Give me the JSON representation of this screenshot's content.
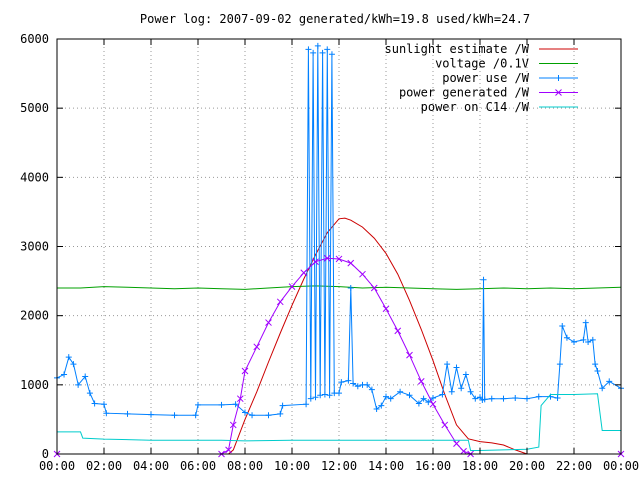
{
  "chart_data": {
    "type": "line",
    "title": "Power log: 2007-09-02 generated/kWh=19.8 used/kWh=24.7",
    "xlabel": "",
    "ylabel": "",
    "xlim": [
      "00:00",
      "24:00"
    ],
    "ylim": [
      0,
      6000
    ],
    "x_ticks": [
      "00:00",
      "02:00",
      "04:00",
      "06:00",
      "08:00",
      "10:00",
      "12:00",
      "14:00",
      "16:00",
      "18:00",
      "20:00",
      "22:00",
      "00:00"
    ],
    "y_ticks": [
      "0",
      "1000",
      "2000",
      "3000",
      "4000",
      "5000",
      "6000"
    ],
    "grid": true,
    "legend_position": "top-right",
    "series": [
      {
        "name": "sunlight estimate /W",
        "color": "#cc0000",
        "marker": "none",
        "points": [
          [
            0,
            0
          ],
          [
            7.3,
            0
          ],
          [
            7.5,
            60
          ],
          [
            8.0,
            500
          ],
          [
            8.5,
            900
          ],
          [
            9.0,
            1330
          ],
          [
            9.5,
            1750
          ],
          [
            10.0,
            2150
          ],
          [
            10.5,
            2530
          ],
          [
            11.0,
            2880
          ],
          [
            11.5,
            3200
          ],
          [
            12.0,
            3400
          ],
          [
            12.25,
            3410
          ],
          [
            12.5,
            3380
          ],
          [
            13.0,
            3280
          ],
          [
            13.5,
            3120
          ],
          [
            14.0,
            2900
          ],
          [
            14.5,
            2600
          ],
          [
            15.0,
            2220
          ],
          [
            15.5,
            1800
          ],
          [
            16.0,
            1350
          ],
          [
            16.5,
            860
          ],
          [
            17.0,
            420
          ],
          [
            17.5,
            220
          ],
          [
            18.0,
            180
          ],
          [
            18.5,
            160
          ],
          [
            19.0,
            130
          ],
          [
            19.5,
            60
          ],
          [
            20.0,
            0
          ],
          [
            24.0,
            0
          ]
        ]
      },
      {
        "name": "voltage /0.1V",
        "color": "#00a000",
        "marker": "none",
        "points": [
          [
            0,
            2400
          ],
          [
            1,
            2400
          ],
          [
            2,
            2420
          ],
          [
            3,
            2410
          ],
          [
            4,
            2400
          ],
          [
            5,
            2390
          ],
          [
            6,
            2400
          ],
          [
            7,
            2390
          ],
          [
            8,
            2380
          ],
          [
            9,
            2400
          ],
          [
            10,
            2420
          ],
          [
            11,
            2430
          ],
          [
            12,
            2420
          ],
          [
            13,
            2400
          ],
          [
            14,
            2410
          ],
          [
            15,
            2400
          ],
          [
            16,
            2390
          ],
          [
            17,
            2380
          ],
          [
            18,
            2390
          ],
          [
            19,
            2400
          ],
          [
            20,
            2390
          ],
          [
            21,
            2400
          ],
          [
            22,
            2390
          ],
          [
            23,
            2400
          ],
          [
            24,
            2410
          ]
        ]
      },
      {
        "name": "power use /W",
        "color": "#0080ff",
        "marker": "plus",
        "points": [
          [
            0,
            1100
          ],
          [
            0.3,
            1150
          ],
          [
            0.5,
            1400
          ],
          [
            0.7,
            1300
          ],
          [
            0.9,
            1000
          ],
          [
            1.2,
            1120
          ],
          [
            1.4,
            880
          ],
          [
            1.6,
            730
          ],
          [
            2.0,
            720
          ],
          [
            2.1,
            590
          ],
          [
            3,
            580
          ],
          [
            4,
            570
          ],
          [
            5,
            560
          ],
          [
            5.9,
            560
          ],
          [
            6.0,
            710
          ],
          [
            7,
            710
          ],
          [
            7.6,
            720
          ],
          [
            8.0,
            600
          ],
          [
            8.3,
            560
          ],
          [
            9.0,
            560
          ],
          [
            9.5,
            580
          ],
          [
            9.6,
            700
          ],
          [
            10.6,
            720
          ],
          [
            10.7,
            5850
          ],
          [
            10.8,
            800
          ],
          [
            10.9,
            5800
          ],
          [
            11.0,
            820
          ],
          [
            11.1,
            5900
          ],
          [
            11.2,
            850
          ],
          [
            11.3,
            5800
          ],
          [
            11.4,
            860
          ],
          [
            11.5,
            5850
          ],
          [
            11.6,
            850
          ],
          [
            11.7,
            5780
          ],
          [
            11.8,
            880
          ],
          [
            12.0,
            880
          ],
          [
            12.1,
            1040
          ],
          [
            12.4,
            1060
          ],
          [
            12.5,
            2400
          ],
          [
            12.6,
            1020
          ],
          [
            12.8,
            980
          ],
          [
            13.0,
            1000
          ],
          [
            13.2,
            1000
          ],
          [
            13.4,
            930
          ],
          [
            13.6,
            650
          ],
          [
            13.8,
            700
          ],
          [
            14.0,
            830
          ],
          [
            14.2,
            800
          ],
          [
            14.6,
            900
          ],
          [
            15.0,
            850
          ],
          [
            15.4,
            730
          ],
          [
            15.6,
            800
          ],
          [
            15.8,
            750
          ],
          [
            16.0,
            810
          ],
          [
            16.4,
            860
          ],
          [
            16.6,
            1300
          ],
          [
            16.8,
            900
          ],
          [
            17.0,
            1250
          ],
          [
            17.2,
            950
          ],
          [
            17.4,
            1150
          ],
          [
            17.6,
            900
          ],
          [
            17.8,
            800
          ],
          [
            18.0,
            820
          ],
          [
            18.1,
            780
          ],
          [
            18.15,
            2520
          ],
          [
            18.2,
            790
          ],
          [
            18.5,
            800
          ],
          [
            19.0,
            800
          ],
          [
            19.5,
            810
          ],
          [
            20.0,
            800
          ],
          [
            20.5,
            830
          ],
          [
            21.0,
            830
          ],
          [
            21.3,
            810
          ],
          [
            21.4,
            1300
          ],
          [
            21.5,
            1850
          ],
          [
            21.7,
            1680
          ],
          [
            22.0,
            1620
          ],
          [
            22.4,
            1650
          ],
          [
            22.5,
            1900
          ],
          [
            22.6,
            1620
          ],
          [
            22.8,
            1650
          ],
          [
            22.9,
            1300
          ],
          [
            23.0,
            1200
          ],
          [
            23.2,
            950
          ],
          [
            23.5,
            1050
          ],
          [
            24.0,
            950
          ]
        ]
      },
      {
        "name": "power generated /W",
        "color": "#a000ff",
        "marker": "cross",
        "points": [
          [
            0,
            0
          ],
          [
            7.0,
            0
          ],
          [
            7.3,
            60
          ],
          [
            7.5,
            420
          ],
          [
            7.8,
            800
          ],
          [
            8.0,
            1200
          ],
          [
            8.5,
            1550
          ],
          [
            9.0,
            1900
          ],
          [
            9.5,
            2200
          ],
          [
            10.0,
            2420
          ],
          [
            10.5,
            2620
          ],
          [
            11.0,
            2780
          ],
          [
            11.5,
            2830
          ],
          [
            12.0,
            2820
          ],
          [
            12.5,
            2760
          ],
          [
            13.0,
            2600
          ],
          [
            13.5,
            2400
          ],
          [
            14.0,
            2100
          ],
          [
            14.5,
            1780
          ],
          [
            15.0,
            1430
          ],
          [
            15.5,
            1050
          ],
          [
            16.0,
            720
          ],
          [
            16.5,
            420
          ],
          [
            17.0,
            150
          ],
          [
            17.3,
            40
          ],
          [
            17.6,
            0
          ],
          [
            24.0,
            0
          ]
        ]
      },
      {
        "name": "power on C14 /W",
        "color": "#00cccc",
        "marker": "none",
        "points": [
          [
            0,
            320
          ],
          [
            1.0,
            320
          ],
          [
            1.1,
            230
          ],
          [
            2.0,
            215
          ],
          [
            4,
            200
          ],
          [
            6,
            200
          ],
          [
            7,
            200
          ],
          [
            8,
            190
          ],
          [
            10,
            200
          ],
          [
            12,
            200
          ],
          [
            14,
            200
          ],
          [
            16,
            200
          ],
          [
            17.5,
            200
          ],
          [
            17.6,
            50
          ],
          [
            18.0,
            50
          ],
          [
            19.0,
            60
          ],
          [
            20.0,
            70
          ],
          [
            20.5,
            100
          ],
          [
            20.6,
            700
          ],
          [
            21,
            860
          ],
          [
            22,
            860
          ],
          [
            23.0,
            870
          ],
          [
            23.2,
            340
          ],
          [
            24,
            340
          ]
        ]
      }
    ]
  }
}
